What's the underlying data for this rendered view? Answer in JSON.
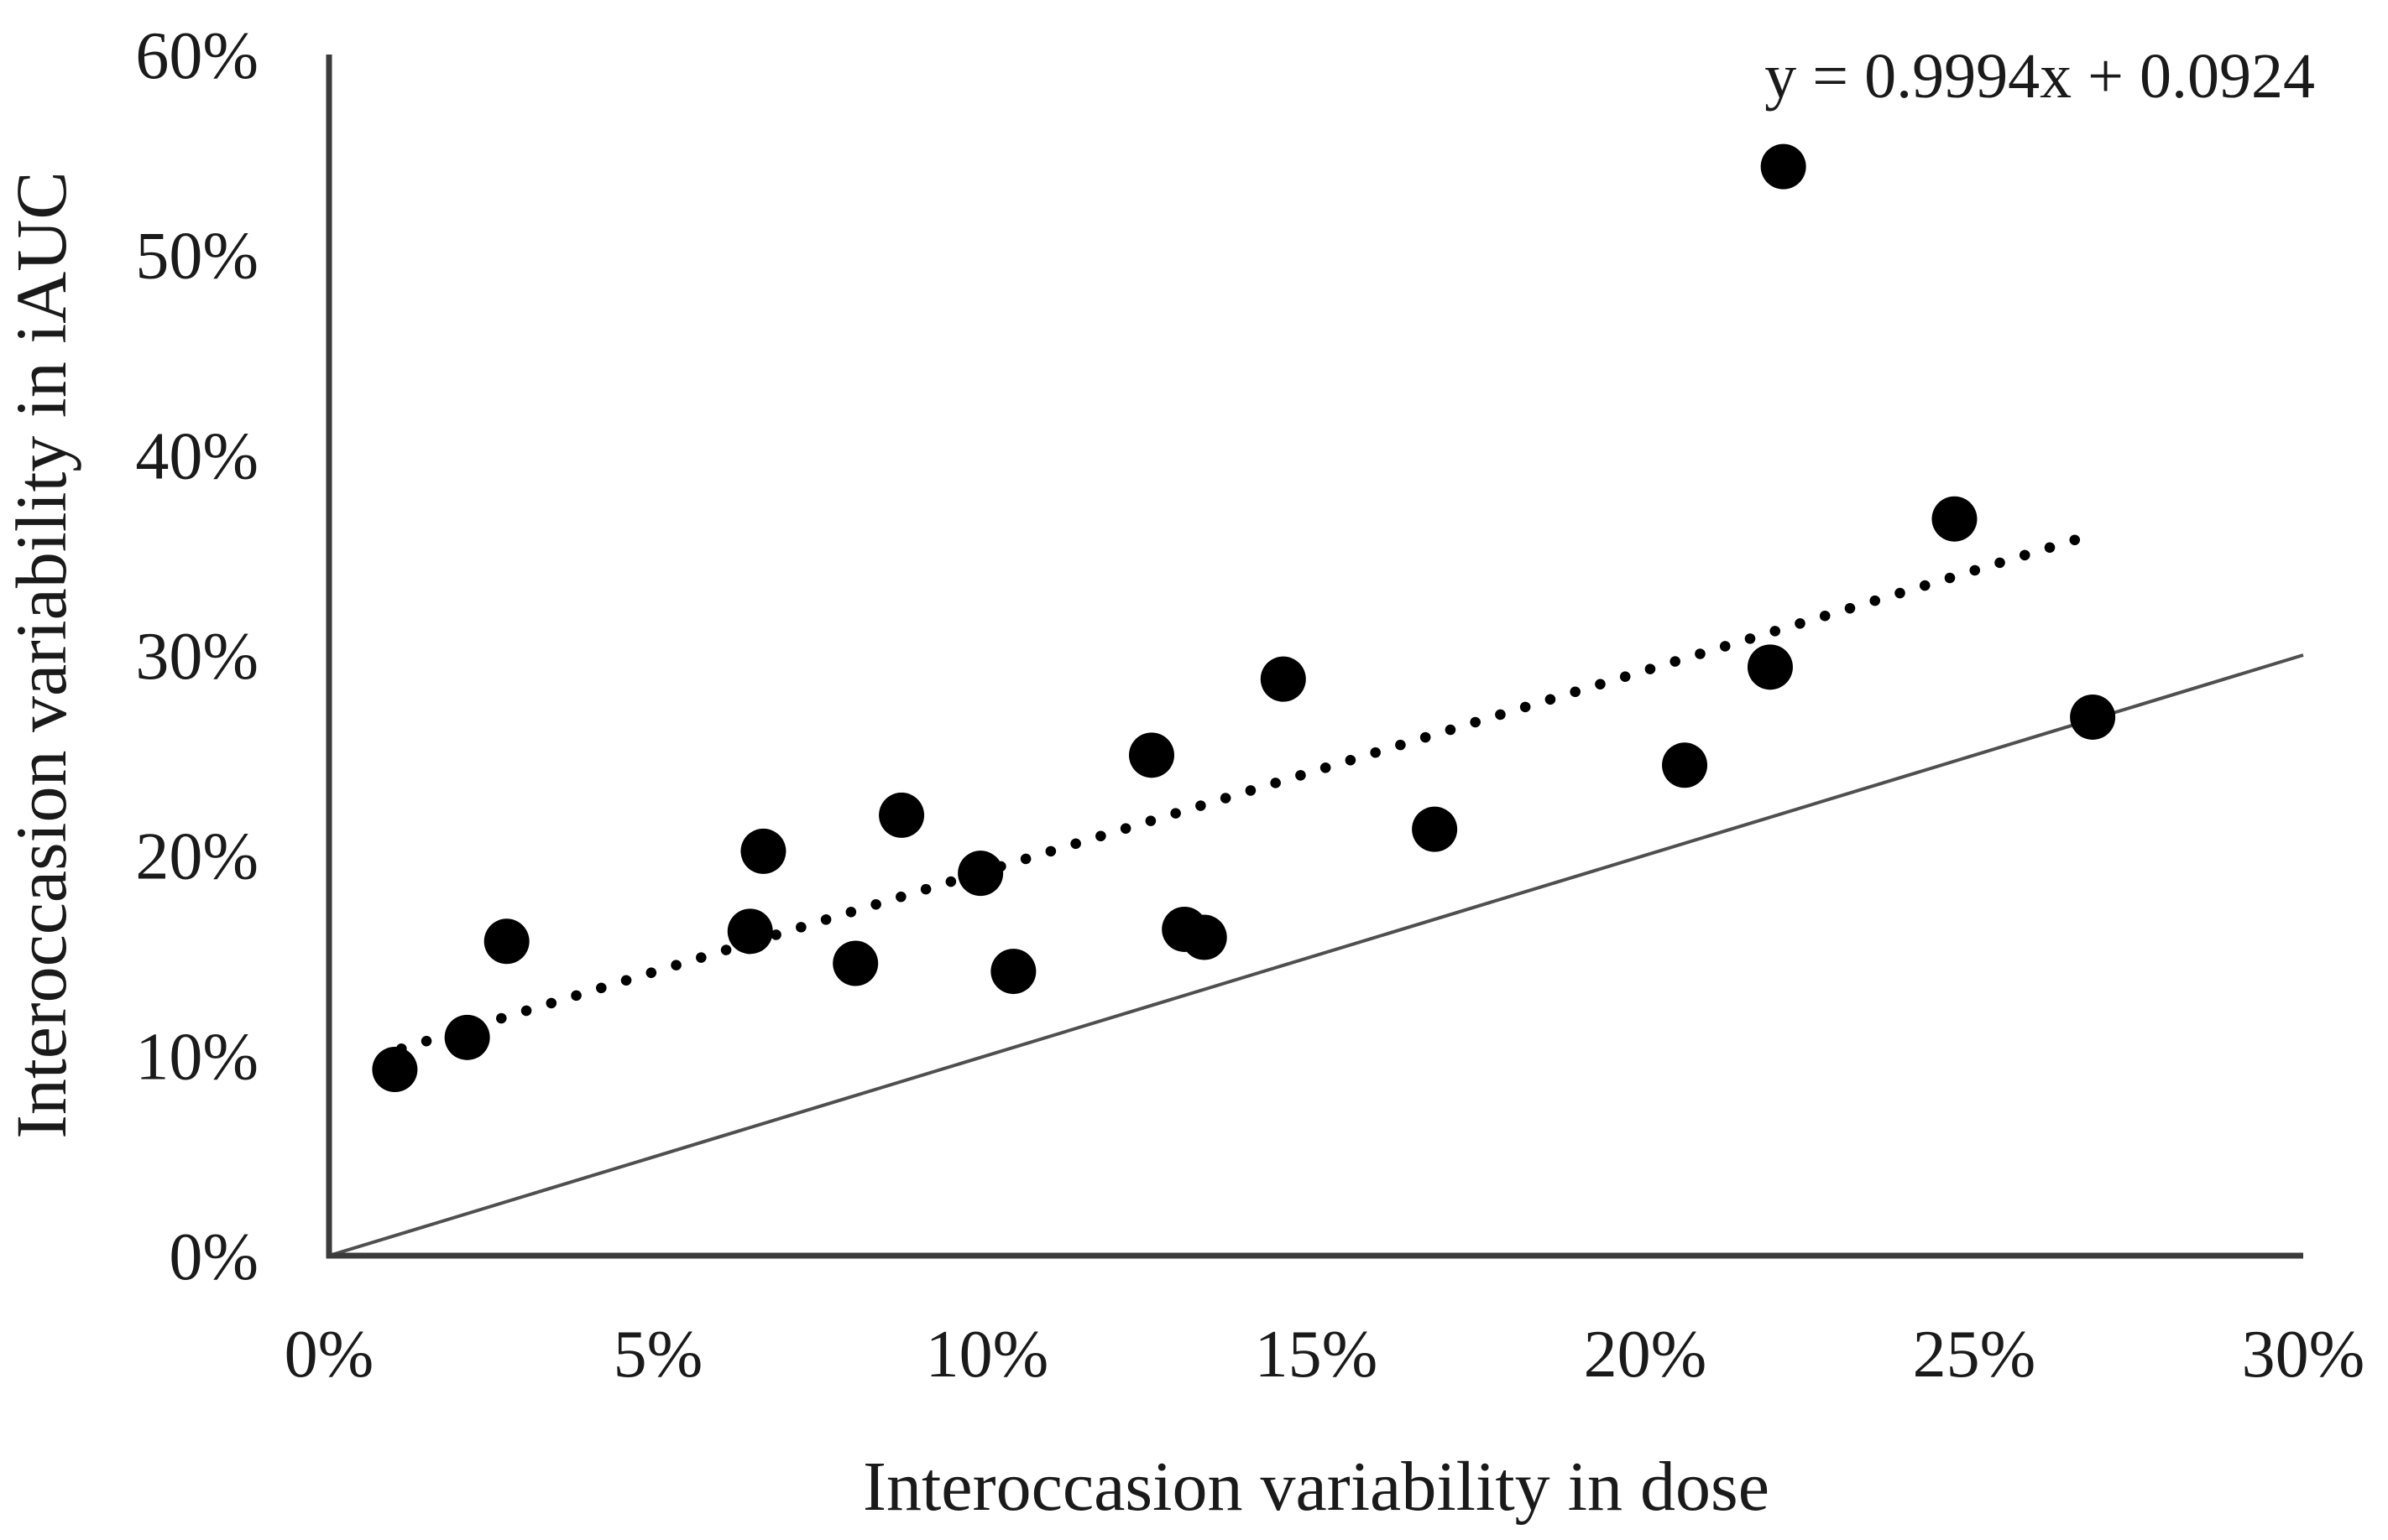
{
  "chart_data": {
    "type": "scatter",
    "title": "",
    "xlabel": "Interoccasion variability in dose",
    "ylabel": "Interoccasion variability in iAUC",
    "xlim": [
      0,
      30
    ],
    "ylim": [
      0,
      60
    ],
    "x_tick_values": [
      0,
      5,
      10,
      15,
      20,
      25,
      30
    ],
    "x_tick_labels": [
      "0%",
      "5%",
      "10%",
      "15%",
      "20%",
      "25%",
      "30%"
    ],
    "y_tick_values": [
      0,
      10,
      20,
      30,
      40,
      50,
      60
    ],
    "y_tick_labels": [
      "0%",
      "10%",
      "20%",
      "30%",
      "40%",
      "50%",
      "60%"
    ],
    "grid": false,
    "legend": null,
    "points_pct": [
      [
        1.0,
        9.3
      ],
      [
        2.1,
        10.9
      ],
      [
        2.7,
        15.7
      ],
      [
        6.4,
        16.2
      ],
      [
        6.6,
        20.2
      ],
      [
        8.0,
        14.6
      ],
      [
        8.7,
        22.0
      ],
      [
        9.9,
        19.1
      ],
      [
        10.4,
        14.2
      ],
      [
        12.5,
        25.0
      ],
      [
        13.0,
        16.3
      ],
      [
        13.3,
        15.9
      ],
      [
        14.5,
        28.8
      ],
      [
        16.8,
        21.3
      ],
      [
        20.6,
        24.5
      ],
      [
        21.9,
        29.4
      ],
      [
        22.1,
        54.4
      ],
      [
        24.7,
        36.8
      ],
      [
        26.8,
        26.9
      ]
    ],
    "trendline": {
      "style": "dotted",
      "slope": 0.9994,
      "intercept_pct": 9.24,
      "x_start_pct": 1.1,
      "x_end_pct": 26.6,
      "equation_label": "y = 0.9994x + 0.0924"
    },
    "identity_line": {
      "style": "solid",
      "from_pct": [
        0,
        0
      ],
      "to_pct": [
        30,
        30
      ]
    },
    "colors": {
      "points": "#000000",
      "trendline": "#000000",
      "identity_line": "#4f4f4f",
      "axis": "#3b3b3b",
      "text": "#1a1a1a",
      "background": "#ffffff"
    }
  }
}
